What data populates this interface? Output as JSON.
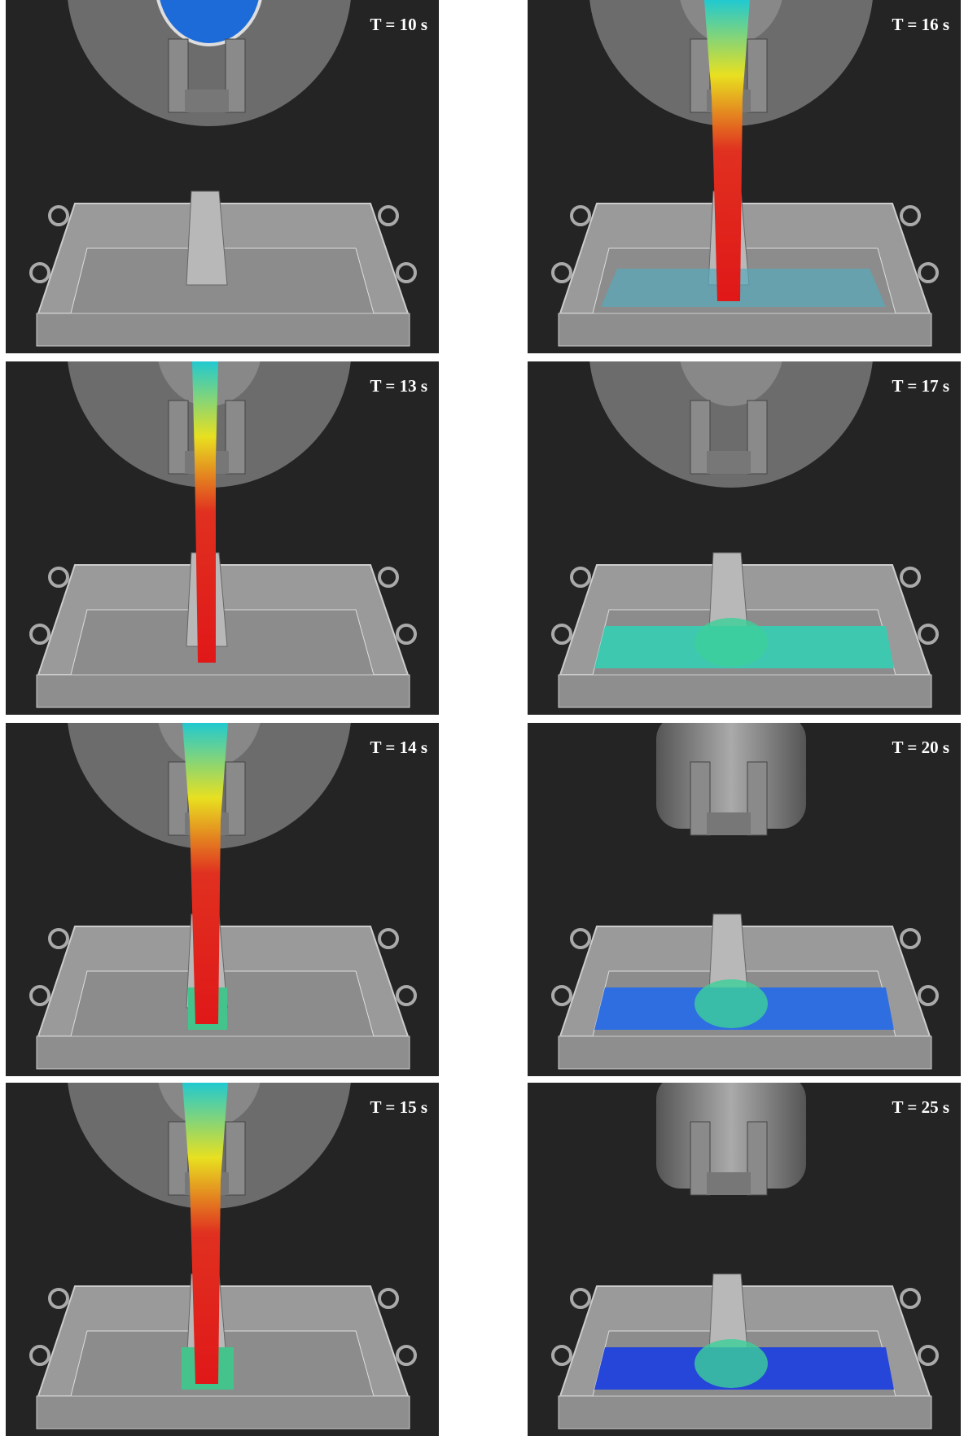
{
  "panels": [
    {
      "label": "T = 10 s"
    },
    {
      "label": "T = 13 s"
    },
    {
      "label": "T = 14 s"
    },
    {
      "label": "T = 15 s"
    },
    {
      "label": "T = 16 s"
    },
    {
      "label": "T = 17 s"
    },
    {
      "label": "T = 20 s"
    },
    {
      "label": "T = 25 s"
    }
  ]
}
